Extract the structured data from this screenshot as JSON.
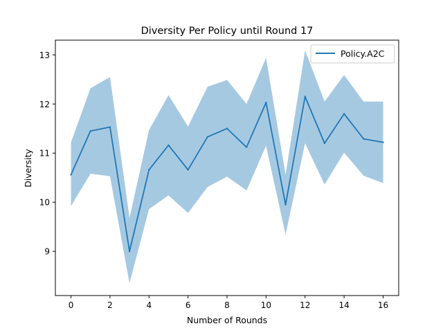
{
  "chart_data": {
    "type": "line",
    "title": "Diversity Per Policy until Round 17",
    "xlabel": "Number of Rounds",
    "ylabel": "Diversity",
    "xlim": [
      -0.8,
      16.8
    ],
    "ylim": [
      8.1,
      13.3
    ],
    "xticks": [
      0,
      2,
      4,
      6,
      8,
      10,
      12,
      14,
      16
    ],
    "yticks": [
      9,
      10,
      11,
      12,
      13
    ],
    "grid": false,
    "legend_position": "top-right",
    "x": [
      0,
      1,
      2,
      3,
      4,
      5,
      6,
      7,
      8,
      9,
      10,
      11,
      12,
      13,
      14,
      15,
      16
    ],
    "series": [
      {
        "name": "Policy.A2C",
        "color": "#1f77b4",
        "band_color": "#a6c9e2",
        "values": [
          10.56,
          11.45,
          11.53,
          9.0,
          10.66,
          11.16,
          10.66,
          11.33,
          11.5,
          11.12,
          12.03,
          9.95,
          12.15,
          11.2,
          11.8,
          11.29,
          11.22
        ],
        "upper": [
          11.22,
          12.32,
          12.55,
          9.68,
          11.47,
          12.18,
          11.54,
          12.35,
          12.49,
          12.0,
          12.94,
          10.56,
          13.09,
          12.05,
          12.59,
          12.05,
          12.05
        ],
        "lower": [
          9.92,
          10.58,
          10.53,
          8.35,
          9.86,
          10.14,
          9.78,
          10.31,
          10.52,
          10.24,
          11.15,
          9.34,
          11.2,
          10.36,
          11.01,
          10.54,
          10.39
        ]
      }
    ]
  }
}
